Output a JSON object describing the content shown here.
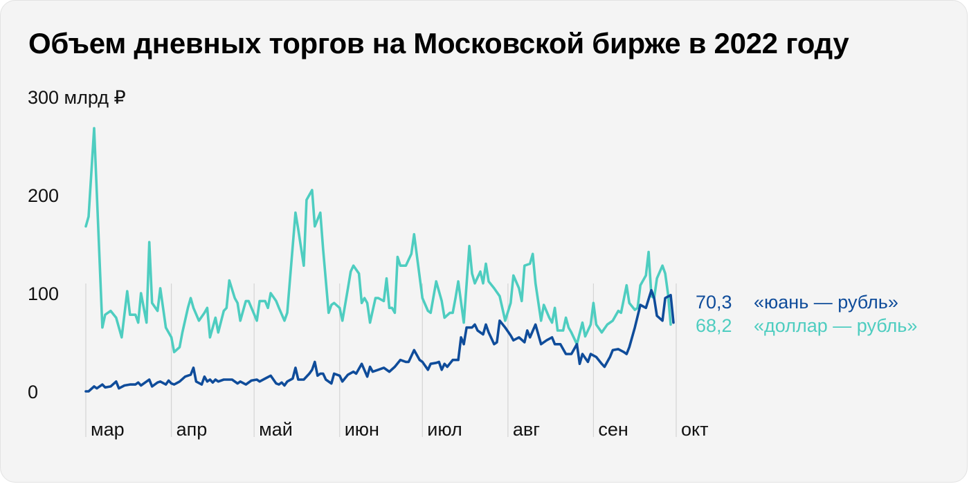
{
  "title": "Объем дневных торгов на Московской бирже в 2022 году",
  "colors": {
    "background": "#f4f4f4",
    "grid": "#d4d4d4",
    "yuan": "#0f4c9a",
    "dollar": "#4ecdc0"
  },
  "chart_data": {
    "type": "line",
    "title": "Объем дневных торгов на Московской бирже в 2022 году",
    "ylabel": "300 млрд ₽",
    "ylim": [
      0,
      300
    ],
    "yticks": [
      {
        "value": 0,
        "label": "0"
      },
      {
        "value": 100,
        "label": "100"
      },
      {
        "value": 200,
        "label": "200"
      },
      {
        "value": 300,
        "label": "300 млрд ₽"
      }
    ],
    "xlim": [
      0,
      214
    ],
    "xticks": [
      {
        "pos": 0,
        "label": "мар"
      },
      {
        "pos": 31,
        "label": "апр"
      },
      {
        "pos": 61,
        "label": "май"
      },
      {
        "pos": 92,
        "label": "июн"
      },
      {
        "pos": 122,
        "label": "июл"
      },
      {
        "pos": 153,
        "label": "авг"
      },
      {
        "pos": 184,
        "label": "сен"
      },
      {
        "pos": 214,
        "label": "окт"
      }
    ],
    "grid": "vertical",
    "series": [
      {
        "name": "«доллар — рубль»",
        "color": "#4ecdc0",
        "end_value_label": "68,2",
        "points": [
          [
            0,
            168
          ],
          [
            1,
            178
          ],
          [
            3,
            268
          ],
          [
            6,
            65
          ],
          [
            7,
            78
          ],
          [
            9,
            82
          ],
          [
            11,
            75
          ],
          [
            13,
            55
          ],
          [
            15,
            102
          ],
          [
            16,
            78
          ],
          [
            18,
            78
          ],
          [
            19,
            70
          ],
          [
            20,
            100
          ],
          [
            22,
            70
          ],
          [
            23,
            152
          ],
          [
            24,
            90
          ],
          [
            26,
            82
          ],
          [
            27,
            105
          ],
          [
            29,
            65
          ],
          [
            31,
            55
          ],
          [
            32,
            40
          ],
          [
            34,
            45
          ],
          [
            35,
            60
          ],
          [
            37,
            85
          ],
          [
            38,
            95
          ],
          [
            39,
            85
          ],
          [
            41,
            72
          ],
          [
            43,
            80
          ],
          [
            44,
            85
          ],
          [
            45,
            55
          ],
          [
            47,
            75
          ],
          [
            48,
            60
          ],
          [
            50,
            82
          ],
          [
            51,
            85
          ],
          [
            52,
            113
          ],
          [
            54,
            95
          ],
          [
            55,
            90
          ],
          [
            56,
            72
          ],
          [
            58,
            92
          ],
          [
            59,
            92
          ],
          [
            62,
            72
          ],
          [
            63,
            92
          ],
          [
            65,
            92
          ],
          [
            66,
            85
          ],
          [
            67,
            100
          ],
          [
            69,
            92
          ],
          [
            70,
            85
          ],
          [
            72,
            72
          ],
          [
            73,
            80
          ],
          [
            76,
            182
          ],
          [
            77,
            165
          ],
          [
            79,
            128
          ],
          [
            80,
            195
          ],
          [
            82,
            205
          ],
          [
            83,
            168
          ],
          [
            85,
            182
          ],
          [
            86,
            145
          ],
          [
            88,
            80
          ],
          [
            89,
            88
          ],
          [
            90,
            90
          ],
          [
            92,
            85
          ],
          [
            93,
            72
          ],
          [
            95,
            105
          ],
          [
            96,
            122
          ],
          [
            97,
            128
          ],
          [
            99,
            120
          ],
          [
            100,
            90
          ],
          [
            101,
            95
          ],
          [
            102,
            90
          ],
          [
            103,
            70
          ],
          [
            105,
            95
          ],
          [
            106,
            95
          ],
          [
            108,
            92
          ],
          [
            109,
            115
          ],
          [
            110,
            85
          ],
          [
            111,
            85
          ],
          [
            112,
            80
          ],
          [
            113,
            137
          ],
          [
            114,
            128
          ],
          [
            116,
            128
          ],
          [
            118,
            140
          ],
          [
            119,
            160
          ],
          [
            122,
            95
          ],
          [
            124,
            82
          ],
          [
            125,
            80
          ],
          [
            127,
            112
          ],
          [
            129,
            92
          ],
          [
            130,
            75
          ],
          [
            132,
            80
          ],
          [
            133,
            80
          ],
          [
            134,
            95
          ],
          [
            135,
            112
          ],
          [
            137,
            70
          ],
          [
            139,
            148
          ],
          [
            140,
            120
          ],
          [
            141,
            110
          ],
          [
            143,
            122
          ],
          [
            144,
            110
          ],
          [
            145,
            130
          ],
          [
            146,
            112
          ],
          [
            148,
            105
          ],
          [
            150,
            97
          ],
          [
            152,
            72
          ],
          [
            154,
            90
          ],
          [
            155,
            118
          ],
          [
            157,
            105
          ],
          [
            158,
            92
          ],
          [
            159,
            128
          ],
          [
            161,
            130
          ],
          [
            162,
            140
          ],
          [
            163,
            110
          ],
          [
            165,
            72
          ],
          [
            166,
            88
          ],
          [
            168,
            75
          ],
          [
            169,
            70
          ],
          [
            170,
            85
          ],
          [
            171,
            62
          ],
          [
            173,
            62
          ],
          [
            174,
            75
          ],
          [
            175,
            65
          ],
          [
            176,
            60
          ],
          [
            178,
            48
          ],
          [
            180,
            70
          ],
          [
            181,
            56
          ],
          [
            183,
            68
          ],
          [
            184,
            90
          ],
          [
            185,
            68
          ],
          [
            187,
            60
          ],
          [
            189,
            68
          ],
          [
            191,
            72
          ],
          [
            193,
            82
          ],
          [
            194,
            80
          ],
          [
            196,
            108
          ],
          [
            197,
            90
          ],
          [
            199,
            83
          ],
          [
            200,
            85
          ],
          [
            201,
            108
          ],
          [
            203,
            118
          ],
          [
            204,
            142
          ],
          [
            205,
            97
          ],
          [
            206,
            95
          ],
          [
            207,
            115
          ],
          [
            209,
            128
          ],
          [
            210,
            120
          ],
          [
            211,
            100
          ],
          [
            212,
            68
          ]
        ]
      },
      {
        "name": "«юань — рубль»",
        "color": "#0f4c9a",
        "end_value_label": "70,3",
        "points": [
          [
            0,
            0
          ],
          [
            1,
            0
          ],
          [
            3,
            5
          ],
          [
            4,
            3
          ],
          [
            6,
            7
          ],
          [
            7,
            4
          ],
          [
            9,
            5
          ],
          [
            11,
            10
          ],
          [
            12,
            3
          ],
          [
            14,
            6
          ],
          [
            16,
            7
          ],
          [
            18,
            7
          ],
          [
            19,
            9
          ],
          [
            20,
            6
          ],
          [
            22,
            10
          ],
          [
            23,
            12
          ],
          [
            24,
            5
          ],
          [
            26,
            9
          ],
          [
            27,
            10
          ],
          [
            29,
            7
          ],
          [
            30,
            11
          ],
          [
            31,
            8
          ],
          [
            32,
            7
          ],
          [
            34,
            10
          ],
          [
            36,
            15
          ],
          [
            38,
            17
          ],
          [
            39,
            24
          ],
          [
            40,
            10
          ],
          [
            42,
            7
          ],
          [
            43,
            15
          ],
          [
            44,
            10
          ],
          [
            45,
            12
          ],
          [
            46,
            9
          ],
          [
            47,
            12
          ],
          [
            48,
            10
          ],
          [
            50,
            12
          ],
          [
            51,
            12
          ],
          [
            53,
            12
          ],
          [
            55,
            8
          ],
          [
            56,
            10
          ],
          [
            58,
            7
          ],
          [
            60,
            11
          ],
          [
            62,
            12
          ],
          [
            63,
            10
          ],
          [
            65,
            13
          ],
          [
            67,
            16
          ],
          [
            69,
            8
          ],
          [
            70,
            7
          ],
          [
            71,
            9
          ],
          [
            72,
            6
          ],
          [
            73,
            10
          ],
          [
            75,
            13
          ],
          [
            76,
            24
          ],
          [
            77,
            12
          ],
          [
            79,
            12
          ],
          [
            81,
            18
          ],
          [
            82,
            22
          ],
          [
            83,
            30
          ],
          [
            84,
            16
          ],
          [
            85,
            18
          ],
          [
            86,
            18
          ],
          [
            87,
            12
          ],
          [
            89,
            8
          ],
          [
            90,
            18
          ],
          [
            92,
            16
          ],
          [
            93,
            10
          ],
          [
            95,
            17
          ],
          [
            97,
            20
          ],
          [
            98,
            18
          ],
          [
            100,
            28
          ],
          [
            102,
            15
          ],
          [
            103,
            25
          ],
          [
            104,
            20
          ],
          [
            106,
            22
          ],
          [
            108,
            24
          ],
          [
            110,
            20
          ],
          [
            112,
            25
          ],
          [
            114,
            32
          ],
          [
            116,
            30
          ],
          [
            117,
            30
          ],
          [
            119,
            42
          ],
          [
            121,
            32
          ],
          [
            122,
            30
          ],
          [
            124,
            22
          ],
          [
            125,
            28
          ],
          [
            127,
            29
          ],
          [
            128,
            30
          ],
          [
            129,
            22
          ],
          [
            130,
            28
          ],
          [
            131,
            25
          ],
          [
            133,
            32
          ],
          [
            135,
            32
          ],
          [
            136,
            55
          ],
          [
            137,
            48
          ],
          [
            138,
            65
          ],
          [
            140,
            65
          ],
          [
            141,
            68
          ],
          [
            142,
            62
          ],
          [
            144,
            58
          ],
          [
            145,
            68
          ],
          [
            146,
            60
          ],
          [
            148,
            48
          ],
          [
            149,
            50
          ],
          [
            150,
            72
          ],
          [
            152,
            65
          ],
          [
            154,
            57
          ],
          [
            155,
            52
          ],
          [
            157,
            55
          ],
          [
            159,
            50
          ],
          [
            160,
            62
          ],
          [
            161,
            55
          ],
          [
            163,
            68
          ],
          [
            164,
            58
          ],
          [
            165,
            48
          ],
          [
            167,
            52
          ],
          [
            169,
            55
          ],
          [
            170,
            48
          ],
          [
            172,
            48
          ],
          [
            174,
            38
          ],
          [
            176,
            38
          ],
          [
            178,
            48
          ],
          [
            179,
            28
          ],
          [
            180,
            38
          ],
          [
            182,
            30
          ],
          [
            183,
            38
          ],
          [
            185,
            35
          ],
          [
            187,
            28
          ],
          [
            188,
            25
          ],
          [
            190,
            35
          ],
          [
            191,
            42
          ],
          [
            193,
            43
          ],
          [
            195,
            40
          ],
          [
            196,
            38
          ],
          [
            197,
            45
          ],
          [
            199,
            65
          ],
          [
            201,
            88
          ],
          [
            203,
            85
          ],
          [
            205,
            103
          ],
          [
            206,
            95
          ],
          [
            207,
            77
          ],
          [
            209,
            72
          ],
          [
            210,
            95
          ],
          [
            212,
            98
          ],
          [
            213,
            70
          ]
        ]
      }
    ]
  }
}
